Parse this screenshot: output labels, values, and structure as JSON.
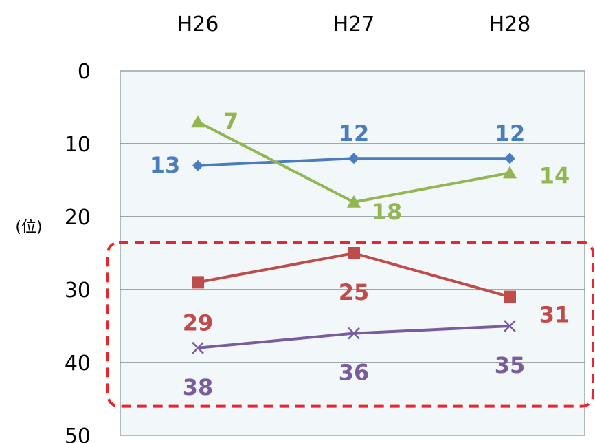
{
  "chart_data": {
    "type": "line",
    "categories": [
      "H26",
      "H27",
      "H28"
    ],
    "ylabel": "(位)",
    "ylim": [
      0,
      50
    ],
    "y_reversed": true,
    "y_ticks": [
      0,
      10,
      20,
      30,
      40,
      50
    ],
    "x_axis_position": "top",
    "grid": true,
    "plot_background": "#f2f8f9",
    "highlight_box": {
      "y_range": [
        23.5,
        46
      ],
      "color": "#e8262b",
      "style": "dashed"
    },
    "series": [
      {
        "values": [
          13,
          12,
          12
        ],
        "color": "#4a7dbd",
        "marker": "diamond"
      },
      {
        "values": [
          7,
          18,
          14
        ],
        "color": "#93b653",
        "marker": "triangle"
      },
      {
        "values": [
          29,
          25,
          31
        ],
        "color": "#bf4c4a",
        "marker": "square"
      },
      {
        "values": [
          38,
          36,
          35
        ],
        "color": "#7a5c9e",
        "marker": "x"
      }
    ]
  }
}
